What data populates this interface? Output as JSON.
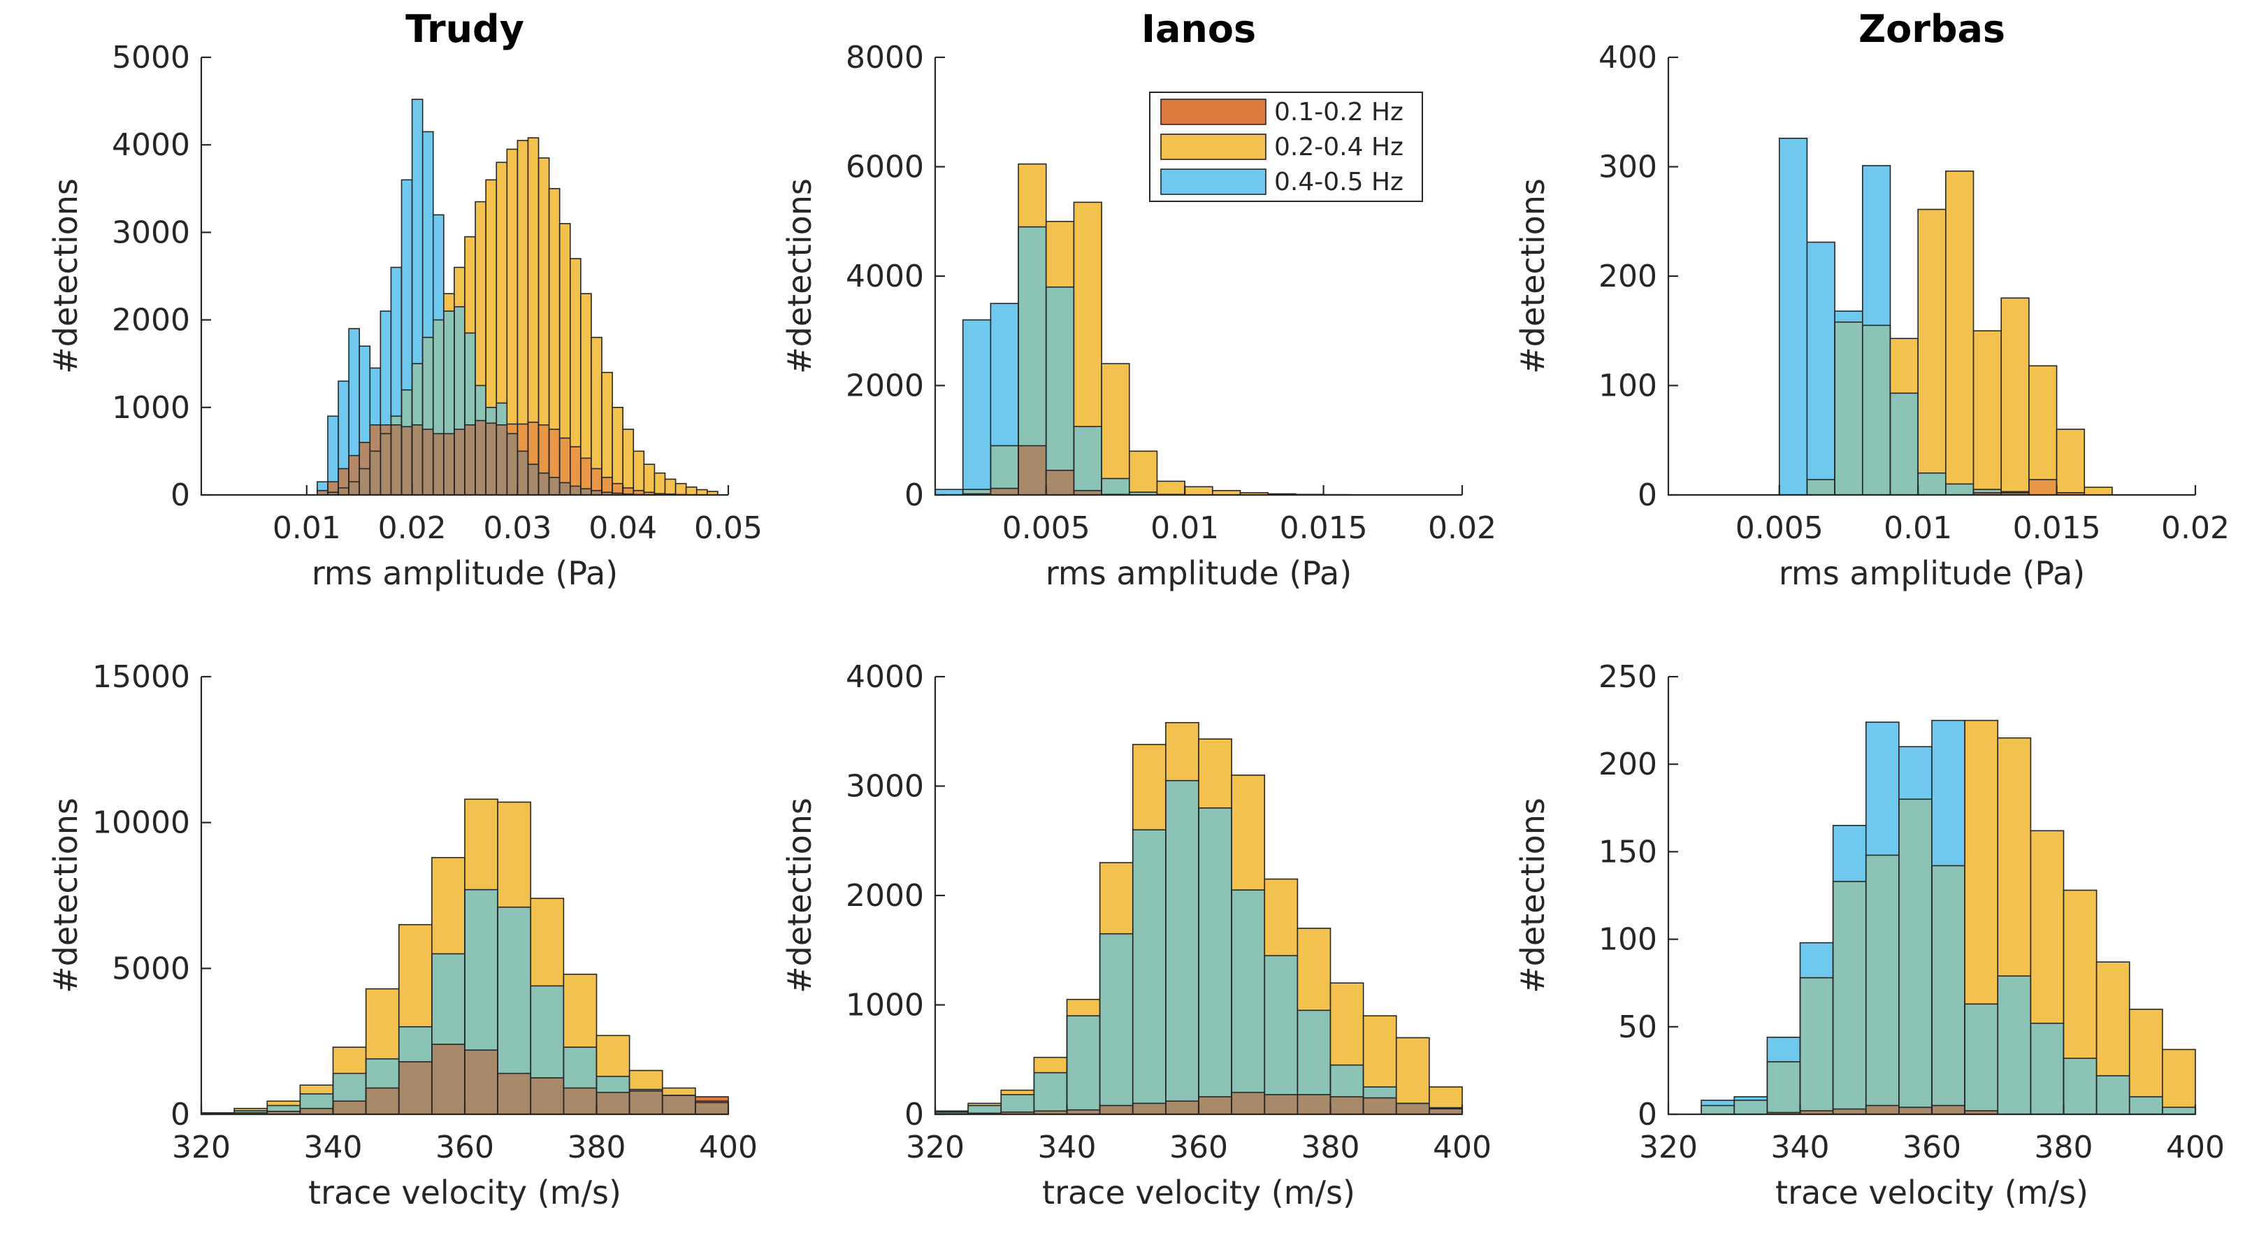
{
  "colors": {
    "low": "#E07B40",
    "mid": "#F2C14E",
    "high": "#6FC9EE",
    "mid_high_overlap": "#8CC3B7",
    "low_high_overlap": "#B58868",
    "low_mid_overlap": "#E89747",
    "all_overlap": "#A8896A"
  },
  "legend": {
    "entries": [
      "0.1-0.2 Hz",
      "0.2-0.4 Hz",
      "0.4-0.5 Hz"
    ]
  },
  "chart_data": [
    {
      "type": "bar",
      "title": "Trudy",
      "xlabel": "rms amplitude (Pa)",
      "ylabel": "#detections",
      "xlim": [
        0,
        0.05
      ],
      "ylim": [
        0,
        5000
      ],
      "xticks": [
        0.01,
        0.02,
        0.03,
        0.04,
        0.05
      ],
      "xtick_labels": [
        "0.01",
        "0.02",
        "0.03",
        "0.04",
        "0.05"
      ],
      "yticks": [
        0,
        1000,
        2000,
        3000,
        4000,
        5000
      ],
      "ytick_labels": [
        "0",
        "1000",
        "2000",
        "3000",
        "4000",
        "5000"
      ],
      "bin_edges": [
        0.011,
        0.012,
        0.013,
        0.014,
        0.015,
        0.016,
        0.017,
        0.018,
        0.019,
        0.02,
        0.021,
        0.022,
        0.023,
        0.024,
        0.025,
        0.026,
        0.027,
        0.028,
        0.029,
        0.03,
        0.031,
        0.032,
        0.033,
        0.034,
        0.035,
        0.036,
        0.037,
        0.038,
        0.039,
        0.04,
        0.041,
        0.042,
        0.043,
        0.044,
        0.045,
        0.046,
        0.047,
        0.048,
        0.049,
        0.05
      ],
      "series": [
        {
          "name": "0.1-0.2 Hz",
          "values": [
            50,
            150,
            300,
            450,
            600,
            800,
            800,
            800,
            780,
            800,
            750,
            700,
            700,
            750,
            800,
            850,
            820,
            800,
            810,
            810,
            830,
            800,
            750,
            650,
            550,
            420,
            300,
            200,
            130,
            80,
            50,
            30,
            15,
            10,
            5,
            3,
            2,
            1,
            0
          ]
        },
        {
          "name": "0.2-0.4 Hz",
          "values": [
            0,
            30,
            80,
            150,
            300,
            500,
            700,
            900,
            1200,
            1500,
            1800,
            2000,
            2300,
            2600,
            2950,
            3350,
            3600,
            3800,
            3950,
            4050,
            4080,
            3850,
            3500,
            3100,
            2700,
            2300,
            1800,
            1400,
            1000,
            750,
            500,
            350,
            250,
            180,
            130,
            90,
            60,
            40,
            0
          ]
        },
        {
          "name": "0.4-0.5 Hz",
          "values": [
            150,
            900,
            1300,
            1900,
            1700,
            1450,
            2100,
            2600,
            3600,
            4520,
            4150,
            3200,
            2100,
            2150,
            1850,
            1250,
            1000,
            1050,
            700,
            500,
            350,
            250,
            200,
            140,
            100,
            70,
            50,
            30,
            20,
            10,
            5,
            3,
            2,
            1,
            1,
            0,
            0,
            0,
            0
          ]
        }
      ]
    },
    {
      "type": "bar",
      "title": "Ianos",
      "xlabel": "rms amplitude (Pa)",
      "ylabel": "#detections",
      "xlim": [
        0.001,
        0.02
      ],
      "ylim": [
        0,
        8000
      ],
      "xticks": [
        0.005,
        0.01,
        0.015,
        0.02
      ],
      "xtick_labels": [
        "0.005",
        "0.01",
        "0.015",
        "0.02"
      ],
      "yticks": [
        0,
        2000,
        4000,
        6000,
        8000
      ],
      "ytick_labels": [
        "0",
        "2000",
        "4000",
        "6000",
        "8000"
      ],
      "bin_edges": [
        0.001,
        0.002,
        0.003,
        0.004,
        0.005,
        0.006,
        0.007,
        0.008,
        0.009,
        0.01,
        0.011,
        0.012,
        0.013,
        0.014,
        0.015,
        0.016,
        0.017,
        0.018,
        0.019,
        0.02
      ],
      "series": [
        {
          "name": "0.1-0.2 Hz",
          "values": [
            0,
            20,
            120,
            900,
            450,
            80,
            10,
            0,
            0,
            0,
            0,
            0,
            0,
            0,
            0,
            0,
            0,
            0,
            0
          ]
        },
        {
          "name": "0.2-0.4 Hz",
          "values": [
            0,
            100,
            900,
            6050,
            5000,
            5350,
            2400,
            800,
            250,
            150,
            80,
            40,
            20,
            10,
            5,
            3,
            2,
            1,
            0
          ]
        },
        {
          "name": "0.4-0.5 Hz",
          "values": [
            100,
            3200,
            3500,
            4900,
            3800,
            1250,
            300,
            50,
            10,
            0,
            0,
            0,
            0,
            0,
            0,
            0,
            0,
            0,
            0
          ]
        }
      ]
    },
    {
      "type": "bar",
      "title": "Zorbas",
      "xlabel": "rms amplitude (Pa)",
      "ylabel": "#detections",
      "xlim": [
        0.001,
        0.02
      ],
      "ylim": [
        0,
        400
      ],
      "xticks": [
        0.005,
        0.01,
        0.015,
        0.02
      ],
      "xtick_labels": [
        "0.005",
        "0.01",
        "0.015",
        "0.02"
      ],
      "yticks": [
        0,
        100,
        200,
        300,
        400
      ],
      "ytick_labels": [
        "0",
        "100",
        "200",
        "300",
        "400"
      ],
      "bin_edges": [
        0.005,
        0.006,
        0.007,
        0.008,
        0.009,
        0.01,
        0.011,
        0.012,
        0.013,
        0.014,
        0.015,
        0.016,
        0.017
      ],
      "series": [
        {
          "name": "0.1-0.2 Hz",
          "values": [
            0,
            0,
            0,
            0,
            0,
            0,
            0,
            2,
            3,
            14,
            2,
            0
          ]
        },
        {
          "name": "0.2-0.4 Hz",
          "values": [
            0,
            14,
            158,
            155,
            143,
            261,
            296,
            150,
            180,
            118,
            60,
            7
          ]
        },
        {
          "name": "0.4-0.5 Hz",
          "values": [
            326,
            231,
            168,
            301,
            93,
            20,
            10,
            5,
            2,
            0,
            0,
            0
          ]
        }
      ]
    },
    {
      "type": "bar",
      "title": "",
      "xlabel": "trace velocity (m/s)",
      "ylabel": "#detections",
      "xlim": [
        320,
        400
      ],
      "ylim": [
        0,
        15000
      ],
      "xticks": [
        320,
        340,
        360,
        380,
        400
      ],
      "xtick_labels": [
        "320",
        "340",
        "360",
        "380",
        "400"
      ],
      "yticks": [
        0,
        5000,
        10000,
        15000
      ],
      "ytick_labels": [
        "0",
        "5000",
        "10000",
        "15000"
      ],
      "bin_edges": [
        320,
        325,
        330,
        335,
        340,
        345,
        350,
        355,
        360,
        365,
        370,
        375,
        380,
        385,
        390,
        395,
        400
      ],
      "series": [
        {
          "name": "0.1-0.2 Hz",
          "values": [
            20,
            50,
            100,
            200,
            450,
            900,
            1800,
            2400,
            2200,
            1400,
            1250,
            900,
            750,
            800,
            650,
            600
          ]
        },
        {
          "name": "0.2-0.4 Hz",
          "values": [
            50,
            200,
            450,
            1000,
            2300,
            4300,
            6500,
            8800,
            10800,
            10700,
            7400,
            4800,
            2700,
            1500,
            900,
            400
          ]
        },
        {
          "name": "0.4-0.5 Hz",
          "values": [
            30,
            120,
            300,
            700,
            1400,
            1900,
            3000,
            5500,
            7700,
            7100,
            4400,
            2300,
            1300,
            850,
            650,
            450
          ]
        }
      ]
    },
    {
      "type": "bar",
      "title": "",
      "xlabel": "trace velocity (m/s)",
      "ylabel": "#detections",
      "xlim": [
        320,
        400
      ],
      "ylim": [
        0,
        4000
      ],
      "xticks": [
        320,
        340,
        360,
        380,
        400
      ],
      "xtick_labels": [
        "320",
        "340",
        "360",
        "380",
        "400"
      ],
      "yticks": [
        0,
        1000,
        2000,
        3000,
        4000
      ],
      "ytick_labels": [
        "0",
        "1000",
        "2000",
        "3000",
        "4000"
      ],
      "bin_edges": [
        320,
        325,
        330,
        335,
        340,
        345,
        350,
        355,
        360,
        365,
        370,
        375,
        380,
        385,
        390,
        395,
        400
      ],
      "series": [
        {
          "name": "0.1-0.2 Hz",
          "values": [
            5,
            10,
            20,
            30,
            40,
            80,
            100,
            120,
            160,
            200,
            180,
            180,
            160,
            150,
            100,
            60
          ]
        },
        {
          "name": "0.2-0.4 Hz",
          "values": [
            30,
            100,
            220,
            520,
            1050,
            2300,
            3380,
            3580,
            3430,
            3100,
            2150,
            1700,
            1200,
            900,
            700,
            250
          ]
        },
        {
          "name": "0.4-0.5 Hz",
          "values": [
            20,
            80,
            180,
            380,
            900,
            1650,
            2600,
            3050,
            2800,
            2050,
            1450,
            950,
            450,
            250,
            100,
            50
          ]
        }
      ]
    },
    {
      "type": "bar",
      "title": "",
      "xlabel": "trace velocity (m/s)",
      "ylabel": "#detections",
      "xlim": [
        320,
        400
      ],
      "ylim": [
        0,
        250
      ],
      "xticks": [
        320,
        340,
        360,
        380,
        400
      ],
      "xtick_labels": [
        "320",
        "340",
        "360",
        "380",
        "400"
      ],
      "yticks": [
        0,
        50,
        100,
        150,
        200,
        250
      ],
      "ytick_labels": [
        "0",
        "50",
        "100",
        "150",
        "200",
        "250"
      ],
      "bin_edges": [
        320,
        325,
        330,
        335,
        340,
        345,
        350,
        355,
        360,
        365,
        370,
        375,
        380,
        385,
        390,
        395,
        400
      ],
      "series": [
        {
          "name": "0.1-0.2 Hz",
          "values": [
            0,
            0,
            0,
            1,
            2,
            3,
            5,
            4,
            5,
            2,
            0,
            0,
            0,
            0,
            0,
            0
          ]
        },
        {
          "name": "0.2-0.4 Hz",
          "values": [
            0,
            5,
            8,
            30,
            78,
            133,
            148,
            180,
            142,
            225,
            215,
            162,
            128,
            87,
            60,
            37
          ]
        },
        {
          "name": "0.4-0.5 Hz",
          "values": [
            0,
            8,
            10,
            44,
            98,
            165,
            224,
            210,
            225,
            63,
            79,
            52,
            32,
            22,
            10,
            4
          ]
        }
      ]
    }
  ]
}
